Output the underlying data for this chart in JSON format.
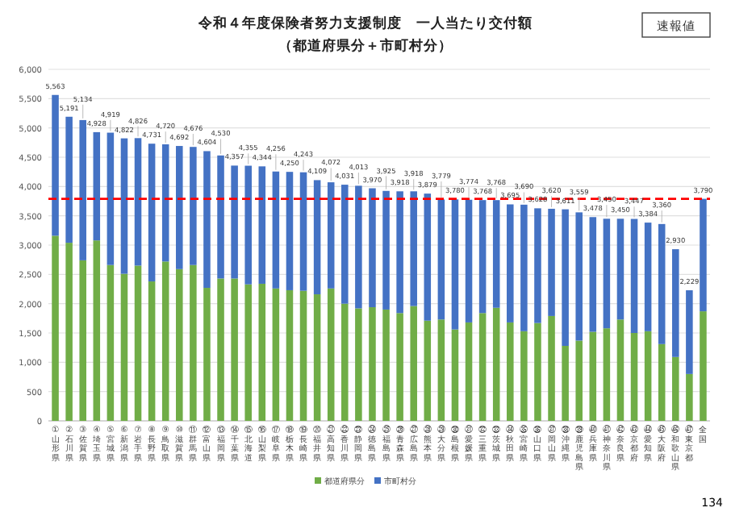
{
  "chart_data": {
    "type": "bar",
    "stacked": true,
    "title": "令和４年度保険者努力支援制度　一人当たり交付額",
    "subtitle": "（都道府県分＋市町村分）",
    "categories": [
      "①山形県",
      "②石川県",
      "③佐賀県",
      "④埼玉県",
      "⑤宮城県",
      "⑥新潟県",
      "⑦岩手県",
      "⑧長野県",
      "⑨鳥取県",
      "⑩滋賀県",
      "⑪群馬県",
      "⑫富山県",
      "⑬福岡県",
      "⑭千葉県",
      "⑮北海道",
      "⑯山梨県",
      "⑰岐阜県",
      "⑱栃木県",
      "⑲長崎県",
      "⑳福井県",
      "㉑高知県",
      "㉒香川県",
      "㉓静岡県",
      "㉔徳島県",
      "㉕福島県",
      "㉖青森県",
      "㉗広島県",
      "㉘熊本県",
      "㉙大分県",
      "㉚島根県",
      "㉛愛媛県",
      "㉜三重県",
      "㉝茨城県",
      "㉞秋田県",
      "㉟宮崎県",
      "㊱山口県",
      "㊲岡山県",
      "㊳沖縄県",
      "㊴鹿児島県",
      "㊵兵庫県",
      "㊶神奈川県",
      "㊷奈良県",
      "㊸京都府",
      "㊹愛知県",
      "㊺大阪府",
      "㊻和歌山県",
      "㊼東京都",
      "全国"
    ],
    "series": [
      {
        "name": "都道府県分",
        "color": "#70ad47",
        "values": [
          3160,
          3040,
          2740,
          3080,
          2660,
          2510,
          2650,
          2380,
          2720,
          2590,
          2660,
          2270,
          2430,
          2430,
          2330,
          2340,
          2260,
          2230,
          2220,
          2160,
          2260,
          2000,
          1920,
          1940,
          1900,
          1840,
          1960,
          1710,
          1730,
          1560,
          1680,
          1840,
          1930,
          1680,
          1530,
          1670,
          1790,
          1280,
          1370,
          1520,
          1580,
          1730,
          1500,
          1530,
          1310,
          1090,
          800,
          1870
        ]
      },
      {
        "name": "市町村分",
        "color": "#4472c4",
        "values": [
          2403,
          2151,
          2394,
          1848,
          2259,
          2312,
          2176,
          2351,
          2000,
          2102,
          2016,
          2334,
          2100,
          1927,
          2025,
          2004,
          1996,
          2020,
          2023,
          1949,
          1812,
          2031,
          2093,
          2030,
          2025,
          2078,
          1958,
          2169,
          2049,
          2220,
          2094,
          1928,
          1838,
          2015,
          2160,
          1958,
          1830,
          2331,
          2189,
          1958,
          1870,
          1720,
          1947,
          1854,
          2050,
          1840,
          1429,
          1920
        ]
      }
    ],
    "totals": [
      "5,563",
      "5,191",
      "5,134",
      "4,928",
      "4,919",
      "4,822",
      "4,826",
      "4,731",
      "4,720",
      "4,692",
      "4,676",
      "4,604",
      "4,530",
      "4,357",
      "4,355",
      "4,344",
      "4,256",
      "4,250",
      "4,243",
      "4,109",
      "4,072",
      "4,031",
      "4,013",
      "3,970",
      "3,925",
      "3,918",
      "3,918",
      "3,879",
      "3,779",
      "3,780",
      "3,774",
      "3,768",
      "3,768",
      "3,695",
      "3,690",
      "3,628",
      "3,620",
      "3,611",
      "3,559",
      "3,478",
      "3,450",
      "3,450",
      "3,447",
      "3,384",
      "3,360",
      "2,930",
      "2,229",
      "3,790"
    ],
    "ylim": [
      0,
      6000
    ],
    "yticks": [
      0,
      {
        "value": 500,
        "label": "500"
      },
      {
        "value": 1000,
        "label": "1,000"
      },
      {
        "value": 1500,
        "label": "1,500"
      },
      {
        "value": 2000,
        "label": "2,000"
      },
      {
        "value": 2500,
        "label": "2,500"
      },
      {
        "value": 3000,
        "label": "3,000"
      },
      {
        "value": 3500,
        "label": "3,500"
      },
      {
        "value": 4000,
        "label": "4,000"
      },
      {
        "value": 4500,
        "label": "4,500"
      },
      {
        "value": 5000,
        "label": "5,000"
      },
      {
        "value": 5500,
        "label": "5,500"
      },
      {
        "value": 6000,
        "label": "6,000"
      }
    ],
    "grid": "y",
    "legend": "bottom",
    "ref_lines": [
      {
        "axis": "y",
        "value": 3790,
        "color": "#ff0000",
        "line_style": "dashed"
      }
    ],
    "annotations": [
      "速報値",
      "134"
    ]
  }
}
